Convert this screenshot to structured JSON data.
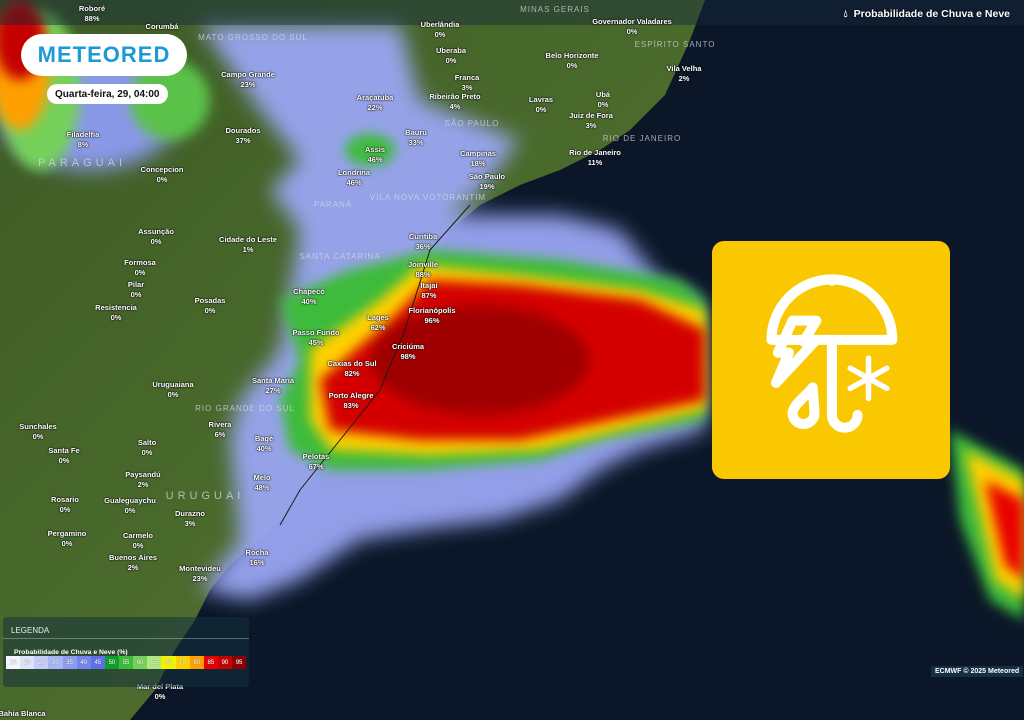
{
  "header": {
    "title": "Probabilidade de Chuva e Neve",
    "title_icon": "droplet-icon"
  },
  "brand": {
    "logo_text": "METEORED",
    "color": "#1b9ad6"
  },
  "timestamp": "Quarta-feira, 29, 04:00",
  "weather_icon": {
    "name": "umbrella-storm-snow-icon",
    "background": "#f9c800"
  },
  "legend": {
    "heading": "LEGENDA",
    "subtitle": "Probabilidade de Chuva e Neve (%)",
    "steps": [
      {
        "label": "15",
        "color": "#f4f6fe"
      },
      {
        "label": "20",
        "color": "#dde3fb"
      },
      {
        "label": "25",
        "color": "#c3cdf8"
      },
      {
        "label": "30",
        "color": "#a7b4f5"
      },
      {
        "label": "35",
        "color": "#8d9cf2"
      },
      {
        "label": "40",
        "color": "#7585ee"
      },
      {
        "label": "45",
        "color": "#5f6eeb"
      },
      {
        "label": "50",
        "color": "#0aa02a"
      },
      {
        "label": "55",
        "color": "#3dbb3a"
      },
      {
        "label": "60",
        "color": "#74d15a"
      },
      {
        "label": "65",
        "color": "#aee87a"
      },
      {
        "label": "70",
        "color": "#f2f200"
      },
      {
        "label": "75",
        "color": "#ffd000"
      },
      {
        "label": "80",
        "color": "#ffa000"
      },
      {
        "label": "85",
        "color": "#e80000"
      },
      {
        "label": "90",
        "color": "#c40000"
      },
      {
        "label": "95",
        "color": "#8b0000"
      }
    ]
  },
  "credit": "ECMWF © 2025 Meteored",
  "regions": [
    "MATO GROSSO DO SUL",
    "MINAS GERAIS",
    "ESPÍRITO SANTO",
    "SÃO PAULO",
    "RIO DE JANEIRO",
    "PARAGUAI",
    "PARANÁ",
    "SANTA CATARINA",
    "RIO GRANDE DO SUL",
    "URUGUAI",
    "VILA NOVA VOTORANTIM"
  ],
  "cities": [
    {
      "name": "Roboré",
      "value": "88%"
    },
    {
      "name": "Corumbá",
      "value": ""
    },
    {
      "name": "Campo Grande",
      "value": "23%"
    },
    {
      "name": "Dourados",
      "value": "37%"
    },
    {
      "name": "Filadelfia",
      "value": "8%"
    },
    {
      "name": "Concepcion",
      "value": "0%"
    },
    {
      "name": "Londrina",
      "value": "46%"
    },
    {
      "name": "Assis",
      "value": "46%"
    },
    {
      "name": "Bauru",
      "value": "33%"
    },
    {
      "name": "Araçatuba",
      "value": "22%"
    },
    {
      "name": "Uberlândia",
      "value": "0%"
    },
    {
      "name": "Uberaba",
      "value": "0%"
    },
    {
      "name": "Franca",
      "value": "3%"
    },
    {
      "name": "Ribeirão Preto",
      "value": "4%"
    },
    {
      "name": "Lavras",
      "value": "0%"
    },
    {
      "name": "Belo Horizonte",
      "value": "0%"
    },
    {
      "name": "Governador Valadares",
      "value": "0%"
    },
    {
      "name": "Vila Velha",
      "value": "2%"
    },
    {
      "name": "Ubá",
      "value": "0%"
    },
    {
      "name": "Juiz de Fora",
      "value": "3%"
    },
    {
      "name": "Rio de Janeiro",
      "value": "11%"
    },
    {
      "name": "Campinas",
      "value": "18%"
    },
    {
      "name": "São Paulo",
      "value": "19%"
    },
    {
      "name": "Assunção",
      "value": "0%"
    },
    {
      "name": "Cidade do Leste",
      "value": "1%"
    },
    {
      "name": "Formosa",
      "value": "0%"
    },
    {
      "name": "Pilar",
      "value": "0%"
    },
    {
      "name": "Resistencia",
      "value": "0%"
    },
    {
      "name": "Posadas",
      "value": "0%"
    },
    {
      "name": "Curitiba",
      "value": "36%"
    },
    {
      "name": "Joinville",
      "value": "88%"
    },
    {
      "name": "Itajaí",
      "value": "87%"
    },
    {
      "name": "Chapecó",
      "value": "40%"
    },
    {
      "name": "Florianópolis",
      "value": "96%"
    },
    {
      "name": "Lages",
      "value": "62%"
    },
    {
      "name": "Passo Fundo",
      "value": "45%"
    },
    {
      "name": "Criciúma",
      "value": "98%"
    },
    {
      "name": "Caxias do Sul",
      "value": "82%"
    },
    {
      "name": "Santa Maria",
      "value": "27%"
    },
    {
      "name": "Porto Alegre",
      "value": "83%"
    },
    {
      "name": "Uruguaiana",
      "value": "0%"
    },
    {
      "name": "Rivera",
      "value": "6%"
    },
    {
      "name": "Bagé",
      "value": "40%"
    },
    {
      "name": "Pelotas",
      "value": "67%"
    },
    {
      "name": "Melo",
      "value": "48%"
    },
    {
      "name": "Sunchales",
      "value": "0%"
    },
    {
      "name": "Santa Fe",
      "value": "0%"
    },
    {
      "name": "Salto",
      "value": "0%"
    },
    {
      "name": "Paysandú",
      "value": "2%"
    },
    {
      "name": "Rosario",
      "value": "0%"
    },
    {
      "name": "Gualeguaychu",
      "value": "0%"
    },
    {
      "name": "Durazno",
      "value": "3%"
    },
    {
      "name": "Pergamino",
      "value": "0%"
    },
    {
      "name": "Carmelo",
      "value": "0%"
    },
    {
      "name": "Buenos Aires",
      "value": "2%"
    },
    {
      "name": "Montevideu",
      "value": "23%"
    },
    {
      "name": "Rocha",
      "value": "16%"
    },
    {
      "name": "Mar del Plata",
      "value": "0%"
    },
    {
      "name": "Bahia Blanca",
      "value": ""
    }
  ]
}
